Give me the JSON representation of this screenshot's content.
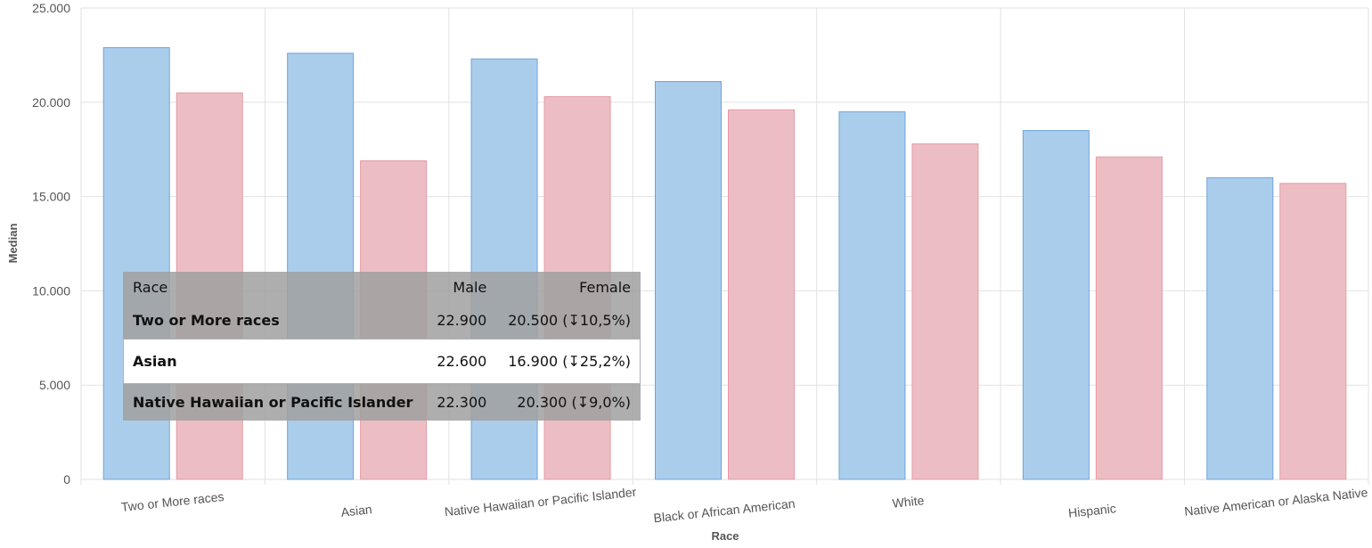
{
  "chart_data": {
    "type": "bar",
    "categories": [
      "Two or More races",
      "Asian",
      "Native Hawaiian or Pacific Islander",
      "Black or African American",
      "White",
      "Hispanic",
      "Native American or Alaska Native"
    ],
    "series": [
      {
        "name": "Male",
        "color": "#abcdec",
        "stroke": "#6fa3dc",
        "values": [
          22900,
          22600,
          22300,
          21100,
          19500,
          18500,
          16000
        ]
      },
      {
        "name": "Female",
        "color": "#ecbec4",
        "stroke": "#e79aa4",
        "values": [
          20500,
          16900,
          20300,
          19600,
          17800,
          17100,
          15700
        ]
      }
    ],
    "xlabel": "Race",
    "ylabel": "Median",
    "ylim": [
      0,
      25000
    ],
    "yticks": [
      {
        "value": 0,
        "label": "0"
      },
      {
        "value": 5000,
        "label": "5.000"
      },
      {
        "value": 10000,
        "label": "10.000"
      },
      {
        "value": 15000,
        "label": "15.000"
      },
      {
        "value": 20000,
        "label": "20.000"
      },
      {
        "value": 25000,
        "label": "25.000"
      }
    ],
    "grid": true
  },
  "tooltip": {
    "headers": {
      "race": "Race",
      "male": "Male",
      "female": "Female"
    },
    "rows": [
      {
        "race": "Two or More races",
        "male": "22.900",
        "female": "20.500 (↧10,5%)",
        "highlighted": false
      },
      {
        "race": "Asian",
        "male": "22.600",
        "female": "16.900 (↧25,2%)",
        "highlighted": true
      },
      {
        "race": "Native Hawaiian or Pacific Islander",
        "male": "22.300",
        "female": "20.300 (↧9,0%)",
        "highlighted": false
      }
    ]
  }
}
